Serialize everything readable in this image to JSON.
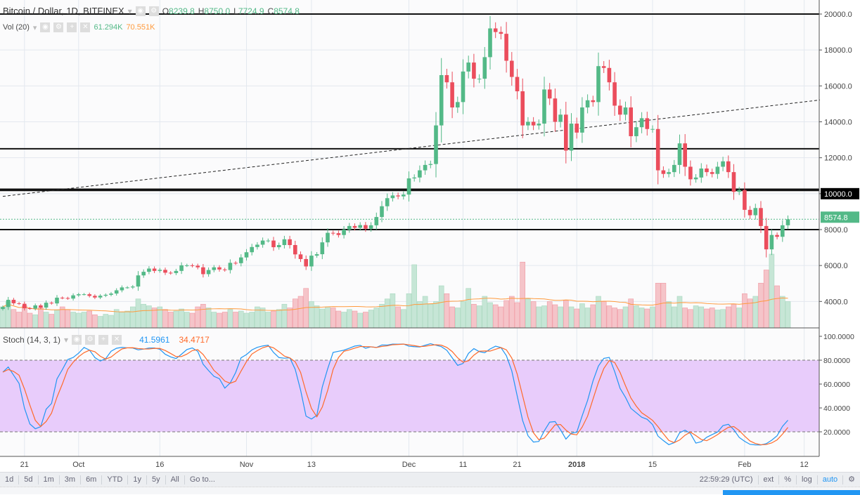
{
  "header": {
    "symbol": "Bitcoin / Dollar, 1D, BITFINEX",
    "o_label": "O",
    "o": "8239.8",
    "h_label": "H",
    "h": "8750.0",
    "l_label": "L",
    "l": "7724.9",
    "c_label": "C",
    "c": "8574.8"
  },
  "volume_legend": {
    "name": "Vol (20)",
    "value": "61.294K",
    "ma": "70.551K"
  },
  "stoch_legend": {
    "name": "Stoch (14, 3, 1)",
    "k": "41.5961",
    "d": "34.4717"
  },
  "colors": {
    "up": "#53b987",
    "down": "#eb4d5c",
    "vol_up": "#c6e6d6",
    "vol_down": "#f5c4c9",
    "vol_ma": "#ff9a3c",
    "stoch_k": "#2196f3",
    "stoch_d": "#ff6a2a",
    "stoch_band": "#e8ccfb",
    "accent": "#2196f3"
  },
  "chart_data": {
    "type": "candlestick",
    "start_date": "2017-09-17",
    "close": [
      3690,
      4090,
      3900,
      3870,
      3620,
      3600,
      3780,
      3660,
      3930,
      3890,
      4210,
      4190,
      4160,
      4340,
      4400,
      4400,
      4310,
      4220,
      4320,
      4370,
      4440,
      4620,
      4780,
      4780,
      4830,
      5450,
      5650,
      5830,
      5700,
      5760,
      5600,
      5580,
      5700,
      6010,
      6010,
      5990,
      5900,
      5520,
      5750,
      5900,
      5780,
      5750,
      6150,
      6130,
      6450,
      6740,
      7030,
      7160,
      7390,
      7390,
      7020,
      7140,
      7460,
      7140,
      6620,
      6360,
      5950,
      6550,
      6630,
      7290,
      7820,
      7800,
      7700,
      8000,
      8200,
      8100,
      8250,
      8050,
      8240,
      8700,
      9300,
      9750,
      9900,
      9850,
      9950,
      10850,
      10900,
      11300,
      11600,
      11650,
      13800,
      16600,
      16200,
      14800,
      15100,
      16800,
      17300,
      16400,
      16400,
      17600,
      19200,
      19000,
      18900,
      17400,
      16500,
      15700,
      13800,
      14000,
      13800,
      13900,
      15800,
      15300,
      14000,
      14400,
      12400,
      13900,
      13400,
      14800,
      15200,
      15100,
      17100,
      17000,
      16200,
      14900,
      14400,
      14800,
      13200,
      13700,
      14200,
      13600,
      13600,
      11300,
      11100,
      11200,
      11600,
      12800,
      11500,
      10800,
      10900,
      11400,
      11200,
      11100,
      11500,
      11800,
      11200,
      10100,
      10200,
      9100,
      8800,
      9200,
      8200,
      6900,
      7700,
      7600,
      8240,
      8575
    ],
    "volume": [
      40,
      50,
      35,
      30,
      42,
      28,
      25,
      38,
      30,
      26,
      34,
      40,
      35,
      30,
      28,
      30,
      32,
      25,
      22,
      26,
      24,
      35,
      30,
      32,
      40,
      55,
      45,
      42,
      38,
      40,
      35,
      30,
      32,
      36,
      30,
      28,
      40,
      45,
      38,
      30,
      28,
      30,
      35,
      30,
      32,
      28,
      30,
      40,
      38,
      30,
      32,
      35,
      45,
      38,
      55,
      60,
      75,
      50,
      42,
      36,
      40,
      38,
      32,
      30,
      35,
      32,
      28,
      30,
      34,
      38,
      45,
      55,
      65,
      40,
      35,
      65,
      120,
      50,
      60,
      45,
      50,
      80,
      65,
      40,
      38,
      50,
      75,
      45,
      42,
      60,
      48,
      44,
      40,
      52,
      60,
      48,
      125,
      55,
      50,
      40,
      42,
      50,
      44,
      40,
      52,
      40,
      36,
      46,
      38,
      44,
      60,
      50,
      42,
      38,
      35,
      40,
      55,
      42,
      38,
      36,
      40,
      85,
      85,
      50,
      40,
      60,
      38,
      35,
      42,
      40,
      36,
      38,
      34,
      35,
      40,
      45,
      38,
      65,
      55,
      60,
      85,
      110,
      140,
      80,
      60,
      50
    ],
    "price_axis": {
      "ticks": [
        "20000.0",
        "18000.0",
        "16000.0",
        "14000.0",
        "12000.0",
        "10000.0",
        "8000.0",
        "6000.0",
        "4000.0"
      ],
      "range": [
        3000,
        20500
      ],
      "last_price": "8574.8",
      "marked_level": "10000.0"
    },
    "horizontal_lines": [
      20000,
      12500,
      10250,
      10180,
      8000
    ],
    "trend_line": {
      "from": [
        "2017-09-17",
        9850
      ],
      "to": [
        "2018-02-12",
        15250
      ],
      "style": "dashed"
    },
    "stoch_axis": {
      "ticks": [
        "100.0000",
        "80.0000",
        "60.0000",
        "40.0000",
        "20.0000"
      ],
      "band": [
        20,
        80
      ]
    },
    "x_ticks": [
      {
        "date": "2017-09-21",
        "label": "21"
      },
      {
        "date": "2017-10-01",
        "label": "Oct"
      },
      {
        "date": "2017-10-16",
        "label": "16"
      },
      {
        "date": "2017-11-01",
        "label": "Nov"
      },
      {
        "date": "2017-11-13",
        "label": "13"
      },
      {
        "date": "2017-12-01",
        "label": "Dec"
      },
      {
        "date": "2017-12-11",
        "label": "11"
      },
      {
        "date": "2017-12-21",
        "label": "21"
      },
      {
        "date": "2018-01-01",
        "label": "2018"
      },
      {
        "date": "2018-01-15",
        "label": "15"
      },
      {
        "date": "2018-02-01",
        "label": "Feb"
      },
      {
        "date": "2018-02-12",
        "label": "12"
      }
    ]
  },
  "toolbar": {
    "ranges": [
      "1d",
      "5d",
      "1m",
      "3m",
      "6m",
      "YTD",
      "1y",
      "5y",
      "All",
      "Go to..."
    ],
    "time": "22:59:29 (UTC)",
    "ext": "ext",
    "percent": "%",
    "log": "log",
    "auto": "auto"
  }
}
